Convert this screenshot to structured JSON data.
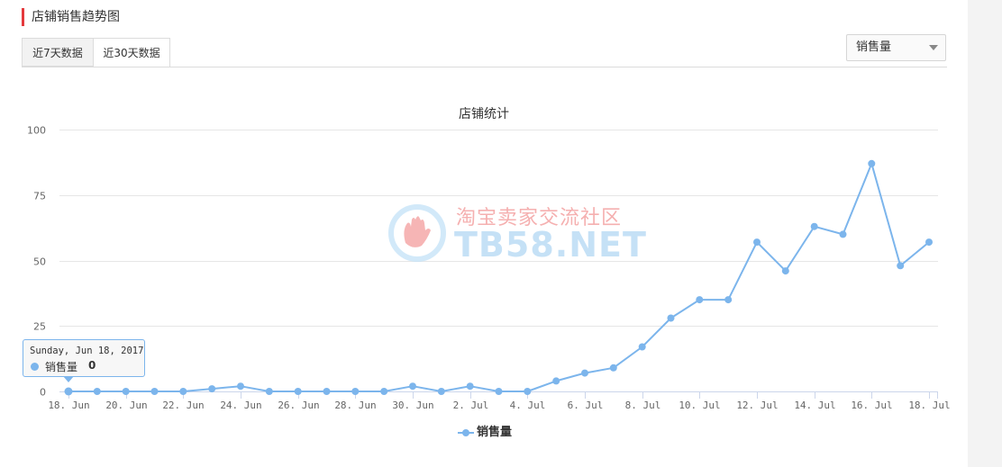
{
  "header": {
    "title": "店铺销售趋势图"
  },
  "tabs": [
    {
      "label": "近7天数据",
      "active": false
    },
    {
      "label": "近30天数据",
      "active": true
    }
  ],
  "metric_select": {
    "selected": "销售量"
  },
  "watermark": {
    "text": "淘宝卖家交流社区",
    "domain": "TB58.NET"
  },
  "tooltip": {
    "date": "Sunday, Jun 18, 2017",
    "series": "销售量",
    "value": "0"
  },
  "colors": {
    "series": "#7cb5ec",
    "accent": "#e4393c",
    "grid": "#e6e6e6"
  },
  "chart_data": {
    "type": "line",
    "title": "店铺统计",
    "xlabel": "",
    "ylabel": "",
    "ylim": [
      0,
      100
    ],
    "yticks": [
      0,
      25,
      50,
      75,
      100
    ],
    "x": [
      "Jun 18",
      "Jun 19",
      "Jun 20",
      "Jun 21",
      "Jun 22",
      "Jun 23",
      "Jun 24",
      "Jun 25",
      "Jun 26",
      "Jun 27",
      "Jun 28",
      "Jun 29",
      "Jun 30",
      "Jul 1",
      "Jul 2",
      "Jul 3",
      "Jul 4",
      "Jul 5",
      "Jul 6",
      "Jul 7",
      "Jul 8",
      "Jul 9",
      "Jul 10",
      "Jul 11",
      "Jul 12",
      "Jul 13",
      "Jul 14",
      "Jul 15",
      "Jul 16",
      "Jul 17",
      "Jul 18"
    ],
    "xtick_labels": [
      "18. Jun",
      "20. Jun",
      "22. Jun",
      "24. Jun",
      "26. Jun",
      "28. Jun",
      "30. Jun",
      "2. Jul",
      "4. Jul",
      "6. Jul",
      "8. Jul",
      "10. Jul",
      "12. Jul",
      "14. Jul",
      "16. Jul",
      "18. Jul"
    ],
    "series": [
      {
        "name": "销售量",
        "values": [
          0,
          0,
          0,
          0,
          0,
          1,
          2,
          0,
          0,
          0,
          0,
          0,
          2,
          0,
          2,
          0,
          0,
          4,
          7,
          9,
          17,
          28,
          35,
          35,
          57,
          46,
          63,
          60,
          87,
          48,
          57
        ]
      }
    ],
    "grid": true,
    "legend": "bottom-center"
  }
}
